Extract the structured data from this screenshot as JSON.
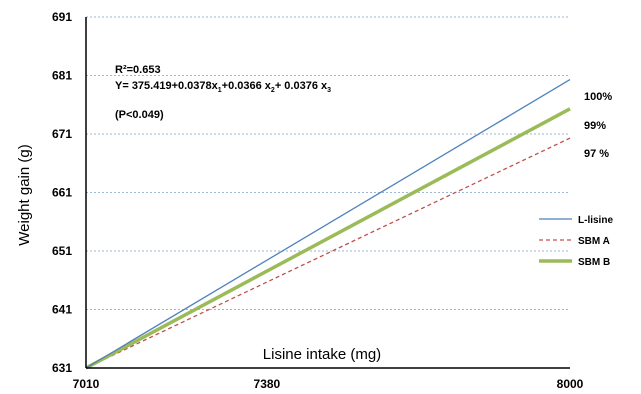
{
  "chart_data": {
    "type": "line",
    "xlabel": "Lisine intake (mg)",
    "ylabel": "Weight gain (g)",
    "xlim": [
      7010,
      8000
    ],
    "ylim": [
      631,
      691
    ],
    "x_ticks": [
      "7010",
      "7380",
      "8000"
    ],
    "y_ticks": [
      "631",
      "641",
      "651",
      "661",
      "671",
      "681",
      "691"
    ],
    "grid": "horizontal dotted",
    "legend_position": "right",
    "series": [
      {
        "name": "L-lisine",
        "x": [
          7010,
          8000
        ],
        "y": [
          631,
          680.3
        ],
        "color": "#4f81bd",
        "style": "solid"
      },
      {
        "name": "SBM A",
        "x": [
          7010,
          8000
        ],
        "y": [
          631,
          670.3
        ],
        "color": "#c0504d",
        "style": "dashed"
      },
      {
        "name": "SBM B",
        "x": [
          7010,
          8000
        ],
        "y": [
          631,
          675.3
        ],
        "color": "#9bbb59",
        "style": "thick"
      }
    ],
    "end_labels": [
      "100%",
      "99%",
      "97 %"
    ],
    "annotations": {
      "r2": "R²=0.653",
      "equation": {
        "a": "Y= 375.419+0.0378x",
        "s1": "1",
        "b": "+0.0366  x",
        "s2": "2",
        "c": "+ 0.0376 x",
        "s3": "3"
      },
      "p": "(P<0.049)"
    }
  }
}
